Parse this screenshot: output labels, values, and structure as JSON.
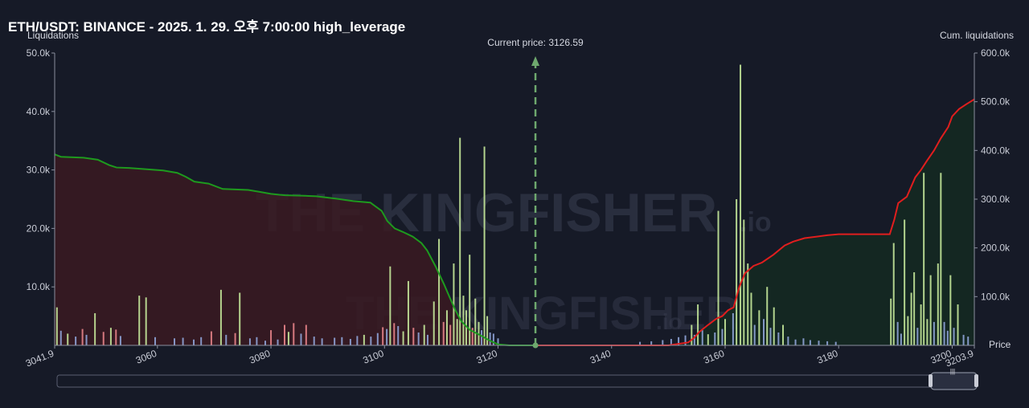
{
  "title": "ETH/USDT: BINANCE - 2025. 1. 29. 오후 7:00:00 high_leverage",
  "watermark": {
    "brand": "THE KINGFISHER",
    "suffix": ".io"
  },
  "colors": {
    "background": "#161a27",
    "long_line": "#1e9a1e",
    "short_line": "#e01e1e",
    "long_fill": "#3a1a22",
    "short_fill": "#142a22",
    "bar_green": "#c4e89a",
    "bar_blue": "#8fa4d8",
    "bar_red": "#e8848a",
    "price_marker": "#6ea86e"
  },
  "chart_data": {
    "type": "bar",
    "x_label": "Price",
    "y_left_label": "Liquidations",
    "y_right_label": "Cum. liquidations",
    "x_range": [
      3041.9,
      3203.9
    ],
    "x_ticks": [
      "3041.9",
      "3060",
      "3080",
      "3100",
      "3120",
      "3140",
      "3160",
      "3180",
      "3200",
      "3203.9"
    ],
    "y_left_range": [
      0,
      50000
    ],
    "y_left_ticks": [
      "10.0k",
      "20.0k",
      "30.0k",
      "40.0k",
      "50.0k"
    ],
    "y_right_range": [
      0,
      600000
    ],
    "y_right_ticks": [
      "100.0k",
      "200.0k",
      "300.0k",
      "400.0k",
      "500.0k",
      "600.0k"
    ],
    "current_price_label": "Current price: 3126.59",
    "current_price": 3126.59,
    "bars": [
      [
        3042.3,
        6500,
        "g"
      ],
      [
        3043.0,
        2500,
        "b"
      ],
      [
        3044.2,
        2000,
        "g"
      ],
      [
        3045.6,
        1500,
        "b"
      ],
      [
        3046.8,
        2800,
        "r"
      ],
      [
        3047.5,
        1800,
        "b"
      ],
      [
        3049.0,
        5500,
        "g"
      ],
      [
        3050.5,
        2300,
        "r"
      ],
      [
        3051.8,
        3000,
        "g"
      ],
      [
        3052.7,
        2700,
        "r"
      ],
      [
        3053.5,
        1600,
        "b"
      ],
      [
        3056.8,
        8500,
        "g"
      ],
      [
        3058.0,
        8200,
        "g"
      ],
      [
        3059.6,
        1400,
        "b"
      ],
      [
        3063.0,
        1200,
        "b"
      ],
      [
        3064.5,
        1300,
        "b"
      ],
      [
        3066.4,
        1000,
        "b"
      ],
      [
        3067.7,
        1400,
        "b"
      ],
      [
        3069.5,
        2400,
        "r"
      ],
      [
        3071.2,
        9500,
        "g"
      ],
      [
        3072.1,
        1800,
        "b"
      ],
      [
        3073.7,
        2100,
        "r"
      ],
      [
        3074.5,
        9000,
        "g"
      ],
      [
        3076.3,
        1200,
        "b"
      ],
      [
        3077.5,
        1400,
        "b"
      ],
      [
        3079.0,
        800,
        "b"
      ],
      [
        3080.0,
        2600,
        "r"
      ],
      [
        3081.2,
        1000,
        "b"
      ],
      [
        3082.4,
        3500,
        "r"
      ],
      [
        3083.1,
        2300,
        "g"
      ],
      [
        3084.0,
        3800,
        "r"
      ],
      [
        3085.3,
        2000,
        "b"
      ],
      [
        3086.2,
        3500,
        "r"
      ],
      [
        3087.6,
        1500,
        "b"
      ],
      [
        3089.0,
        1200,
        "b"
      ],
      [
        3091.2,
        1300,
        "b"
      ],
      [
        3092.5,
        1400,
        "b"
      ],
      [
        3094.0,
        1100,
        "b"
      ],
      [
        3095.2,
        1600,
        "b"
      ],
      [
        3096.4,
        1800,
        "g"
      ],
      [
        3097.6,
        1500,
        "b"
      ],
      [
        3098.8,
        2100,
        "b"
      ],
      [
        3099.7,
        3100,
        "r"
      ],
      [
        3100.4,
        2800,
        "b"
      ],
      [
        3101.0,
        13500,
        "g"
      ],
      [
        3101.7,
        3800,
        "r"
      ],
      [
        3102.4,
        3300,
        "b"
      ],
      [
        3103.3,
        2400,
        "g"
      ],
      [
        3104.2,
        11000,
        "g"
      ],
      [
        3105.1,
        3000,
        "r"
      ],
      [
        3106.0,
        2200,
        "b"
      ],
      [
        3107.0,
        3500,
        "g"
      ],
      [
        3107.6,
        1800,
        "b"
      ],
      [
        3108.7,
        7500,
        "g"
      ],
      [
        3109.6,
        18200,
        "g"
      ],
      [
        3110.4,
        4000,
        "r"
      ],
      [
        3111.0,
        6000,
        "g"
      ],
      [
        3111.6,
        3500,
        "r"
      ],
      [
        3112.2,
        14000,
        "g"
      ],
      [
        3112.8,
        4500,
        "g"
      ],
      [
        3113.3,
        35500,
        "g"
      ],
      [
        3113.9,
        8500,
        "g"
      ],
      [
        3114.4,
        6000,
        "g"
      ],
      [
        3115.0,
        15500,
        "g"
      ],
      [
        3115.5,
        3000,
        "r"
      ],
      [
        3116.0,
        8000,
        "g"
      ],
      [
        3116.6,
        4000,
        "g"
      ],
      [
        3117.1,
        2600,
        "b"
      ],
      [
        3117.6,
        34000,
        "g"
      ],
      [
        3118.1,
        5000,
        "g"
      ],
      [
        3118.6,
        2200,
        "b"
      ],
      [
        3119.2,
        2000,
        "b"
      ],
      [
        3120.0,
        1200,
        "b"
      ],
      [
        3145.0,
        600,
        "b"
      ],
      [
        3147.0,
        700,
        "b"
      ],
      [
        3149.0,
        900,
        "b"
      ],
      [
        3150.5,
        1100,
        "b"
      ],
      [
        3151.8,
        1400,
        "b"
      ],
      [
        3153.0,
        1700,
        "b"
      ],
      [
        3154.1,
        3500,
        "g"
      ],
      [
        3154.6,
        1800,
        "b"
      ],
      [
        3155.2,
        7000,
        "g"
      ],
      [
        3156.0,
        2600,
        "b"
      ],
      [
        3157.0,
        1900,
        "g"
      ],
      [
        3158.2,
        2200,
        "b"
      ],
      [
        3158.8,
        23000,
        "g"
      ],
      [
        3159.5,
        2800,
        "b"
      ],
      [
        3160.0,
        4500,
        "g"
      ],
      [
        3161.4,
        5500,
        "b"
      ],
      [
        3162.0,
        25000,
        "g"
      ],
      [
        3162.7,
        48000,
        "g"
      ],
      [
        3163.3,
        21500,
        "g"
      ],
      [
        3164.0,
        14000,
        "g"
      ],
      [
        3164.6,
        9000,
        "g"
      ],
      [
        3165.2,
        3500,
        "b"
      ],
      [
        3166.0,
        6000,
        "g"
      ],
      [
        3166.8,
        4500,
        "b"
      ],
      [
        3167.4,
        10000,
        "g"
      ],
      [
        3168.0,
        3000,
        "b"
      ],
      [
        3168.6,
        6500,
        "g"
      ],
      [
        3169.4,
        2200,
        "b"
      ],
      [
        3170.2,
        3500,
        "g"
      ],
      [
        3171.1,
        1500,
        "b"
      ],
      [
        3172.4,
        1000,
        "b"
      ],
      [
        3173.8,
        1200,
        "b"
      ],
      [
        3175.0,
        900,
        "b"
      ],
      [
        3176.5,
        800,
        "b"
      ],
      [
        3178.0,
        700,
        "b"
      ],
      [
        3179.5,
        600,
        "b"
      ],
      [
        3189.2,
        8000,
        "g"
      ],
      [
        3189.7,
        17500,
        "g"
      ],
      [
        3190.4,
        4000,
        "b"
      ],
      [
        3191.0,
        2000,
        "b"
      ],
      [
        3191.6,
        21500,
        "g"
      ],
      [
        3192.2,
        5000,
        "g"
      ],
      [
        3192.8,
        9000,
        "g"
      ],
      [
        3193.3,
        12500,
        "g"
      ],
      [
        3193.9,
        3000,
        "b"
      ],
      [
        3194.5,
        7000,
        "g"
      ],
      [
        3195.0,
        29500,
        "g"
      ],
      [
        3195.6,
        4500,
        "g"
      ],
      [
        3196.2,
        12000,
        "g"
      ],
      [
        3196.8,
        4000,
        "b"
      ],
      [
        3197.5,
        14000,
        "g"
      ],
      [
        3198.0,
        29500,
        "g"
      ],
      [
        3198.6,
        4000,
        "b"
      ],
      [
        3199.2,
        2500,
        "b"
      ],
      [
        3199.7,
        12000,
        "g"
      ],
      [
        3200.3,
        3000,
        "b"
      ],
      [
        3201.0,
        7000,
        "g"
      ],
      [
        3202.0,
        1800,
        "b"
      ],
      [
        3202.8,
        1500,
        "b"
      ]
    ],
    "cum_long": [
      [
        3041.9,
        392000
      ],
      [
        3043.0,
        387000
      ],
      [
        3047.0,
        385000
      ],
      [
        3049.5,
        381000
      ],
      [
        3051.5,
        370000
      ],
      [
        3052.8,
        365000
      ],
      [
        3055.0,
        364000
      ],
      [
        3061.0,
        359000
      ],
      [
        3063.5,
        354000
      ],
      [
        3065.0,
        346000
      ],
      [
        3066.5,
        336000
      ],
      [
        3069.0,
        332000
      ],
      [
        3071.5,
        321000
      ],
      [
        3076.0,
        319000
      ],
      [
        3078.0,
        315000
      ],
      [
        3080.0,
        311000
      ],
      [
        3081.5,
        309000
      ],
      [
        3082.5,
        308000
      ],
      [
        3086.0,
        307000
      ],
      [
        3088.0,
        306000
      ],
      [
        3091.5,
        301000
      ],
      [
        3094.5,
        296000
      ],
      [
        3097.5,
        293000
      ],
      [
        3099.5,
        276000
      ],
      [
        3100.5,
        255000
      ],
      [
        3101.8,
        240000
      ],
      [
        3103.2,
        233000
      ],
      [
        3105.0,
        223000
      ],
      [
        3106.5,
        210000
      ],
      [
        3107.5,
        195000
      ],
      [
        3109.0,
        162000
      ],
      [
        3110.5,
        125000
      ],
      [
        3111.5,
        98000
      ],
      [
        3112.5,
        72000
      ],
      [
        3113.5,
        50000
      ],
      [
        3115.0,
        32000
      ],
      [
        3117.0,
        20000
      ],
      [
        3118.5,
        10000
      ],
      [
        3120.0,
        2000
      ],
      [
        3122.0,
        0
      ],
      [
        3126.59,
        0
      ]
    ],
    "cum_short": [
      [
        3126.59,
        0
      ],
      [
        3150.0,
        0
      ],
      [
        3153.5,
        6000
      ],
      [
        3154.5,
        15000
      ],
      [
        3155.5,
        28000
      ],
      [
        3157.0,
        42000
      ],
      [
        3158.5,
        55000
      ],
      [
        3159.5,
        60000
      ],
      [
        3160.5,
        72000
      ],
      [
        3161.5,
        78000
      ],
      [
        3162.5,
        120000
      ],
      [
        3163.5,
        148000
      ],
      [
        3165.0,
        163000
      ],
      [
        3166.5,
        170000
      ],
      [
        3168.5,
        186000
      ],
      [
        3170.5,
        205000
      ],
      [
        3172.0,
        213000
      ],
      [
        3174.0,
        220000
      ],
      [
        3178.0,
        226000
      ],
      [
        3180.0,
        228000
      ],
      [
        3189.0,
        228000
      ],
      [
        3189.8,
        258000
      ],
      [
        3190.5,
        292000
      ],
      [
        3192.0,
        305000
      ],
      [
        3193.5,
        345000
      ],
      [
        3194.5,
        360000
      ],
      [
        3195.5,
        378000
      ],
      [
        3196.8,
        400000
      ],
      [
        3198.0,
        425000
      ],
      [
        3199.3,
        448000
      ],
      [
        3200.0,
        470000
      ],
      [
        3201.2,
        485000
      ],
      [
        3202.5,
        495000
      ],
      [
        3203.9,
        505000
      ]
    ]
  }
}
